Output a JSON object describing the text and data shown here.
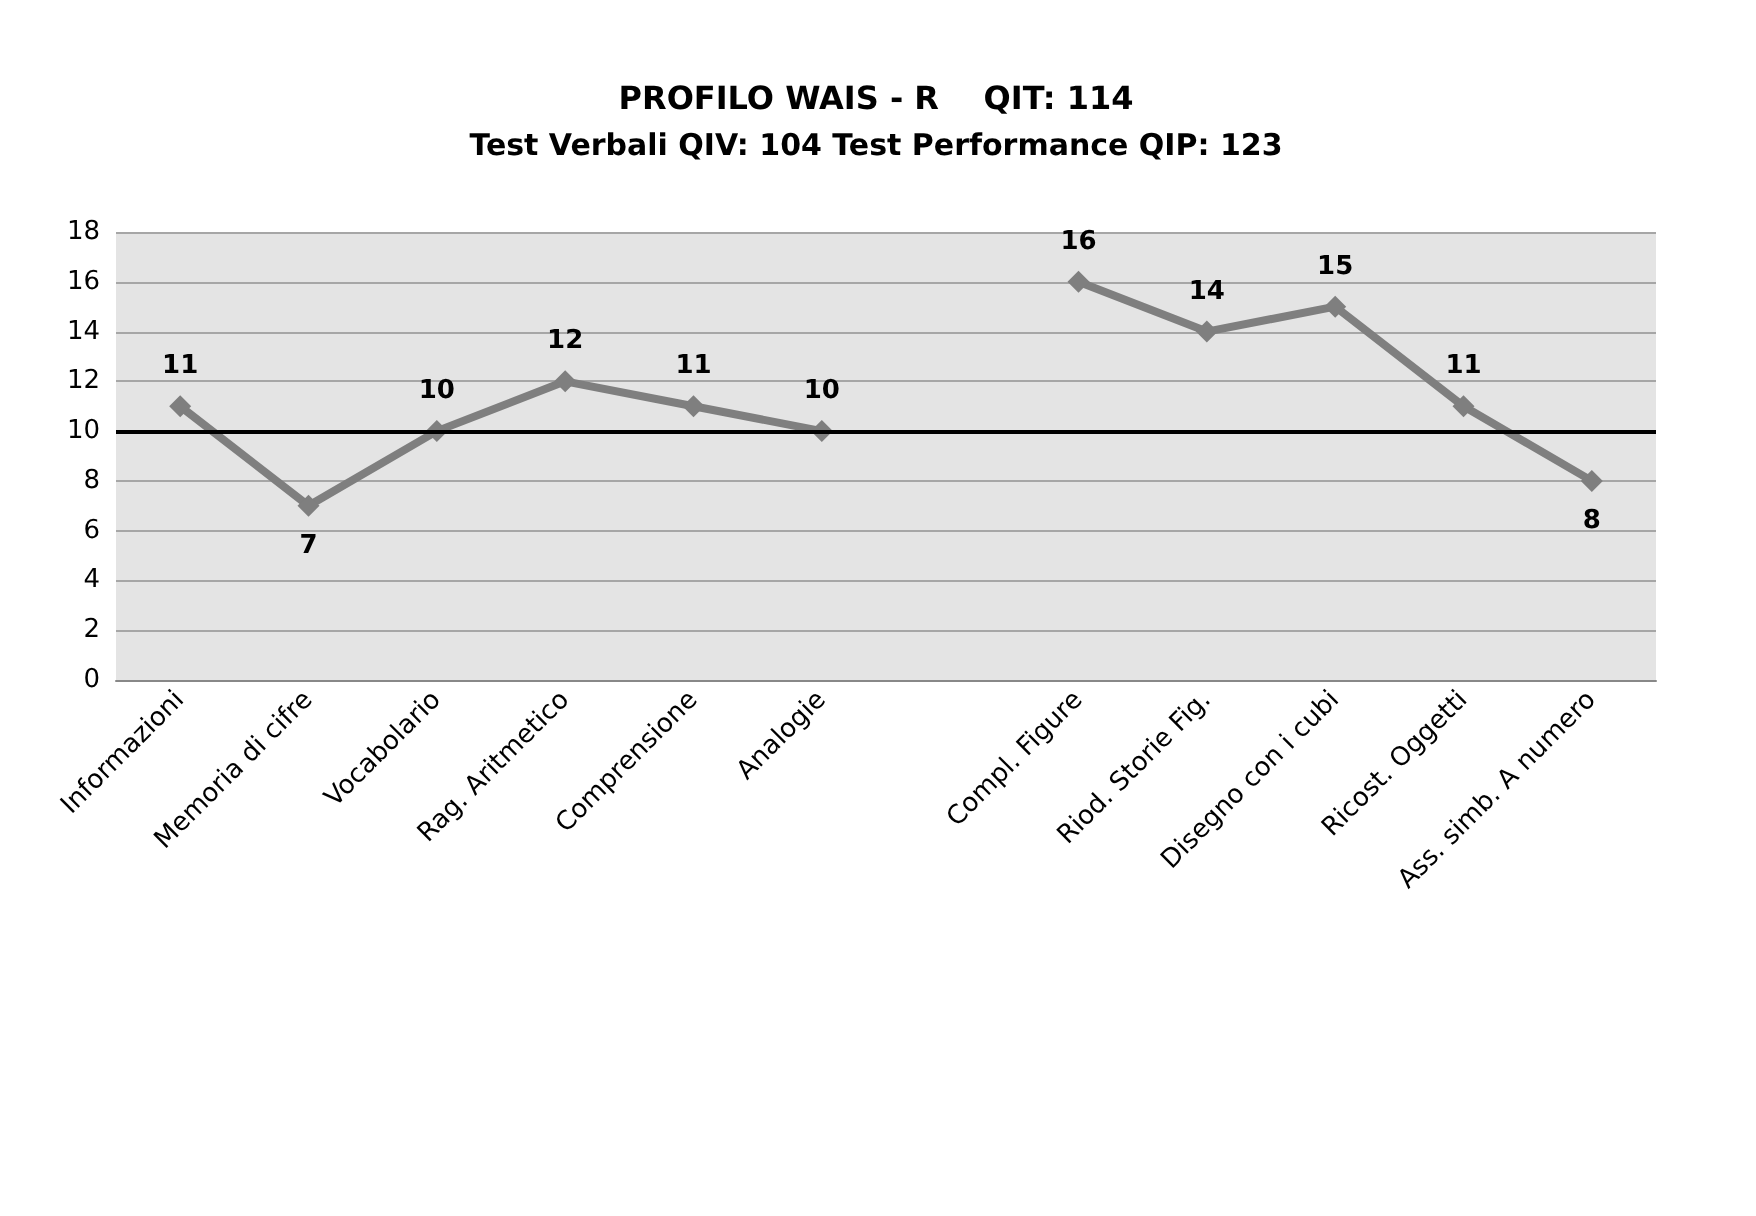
{
  "chart_data": {
    "type": "line",
    "title": "PROFILO WAIS - R    QIT: 114",
    "subtitle": "Test Verbali QIV: 104 Test Performance QIP: 123",
    "categories": [
      "Informazioni",
      "Memoria di cifre",
      "Vocabolario",
      "Rag. Aritmetico",
      "Comprensione",
      "Analogie",
      null,
      "Compl. Figure",
      "Riod. Storie Fig.",
      "Disegno con i cubi",
      "Ricost. Oggetti",
      "Ass. simb. A numero"
    ],
    "series": [
      {
        "color": "#7f7f7f",
        "values": [
          11,
          7,
          10,
          12,
          11,
          10,
          null,
          16,
          14,
          15,
          11,
          8
        ]
      }
    ],
    "ylim": [
      0,
      18
    ],
    "yticks": [
      0,
      2,
      4,
      6,
      8,
      10,
      12,
      14,
      16,
      18
    ],
    "ref_lines": [
      {
        "axis": "y",
        "value": 10,
        "color": "#000000",
        "line_style": "solid"
      }
    ],
    "grid": "y",
    "marker": "diamond",
    "line_style": "solid",
    "data_labels": true
  }
}
